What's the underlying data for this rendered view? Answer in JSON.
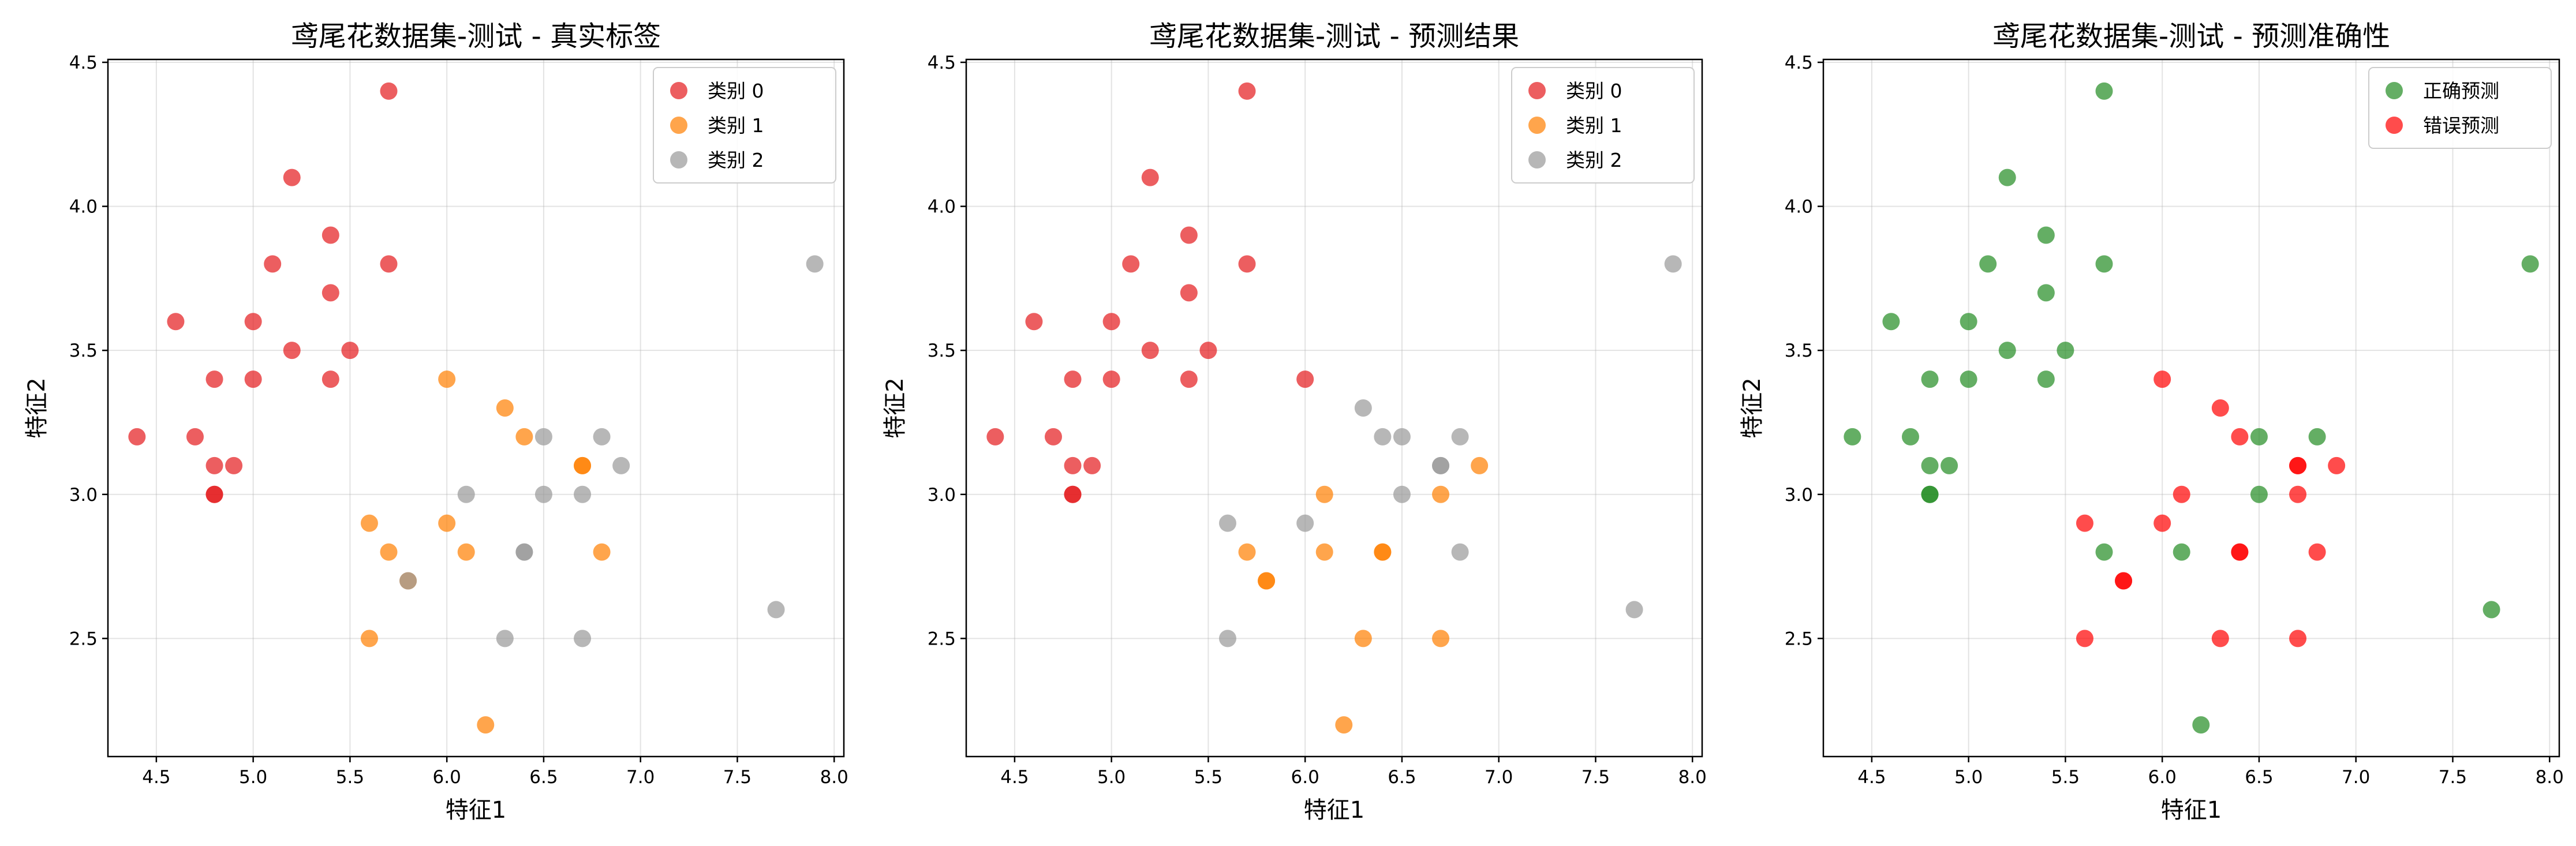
{
  "chart_data": [
    {
      "type": "scatter",
      "title": "鸢尾花数据集-测试 - 真实标签",
      "xlabel": "特征1",
      "ylabel": "特征2",
      "xlim": [
        4.25,
        8.05
      ],
      "ylim": [
        2.09,
        4.51
      ],
      "xticks": [
        "4.5",
        "5.0",
        "5.5",
        "6.0",
        "6.5",
        "7.0",
        "7.5",
        "8.0"
      ],
      "yticks": [
        "2.5",
        "3.0",
        "3.5",
        "4.0",
        "4.5"
      ],
      "grid": true,
      "legend_position": "top-right",
      "series": [
        {
          "name": "类别 0",
          "color": "#e41a1c",
          "points": [
            [
              5.7,
              4.4
            ],
            [
              5.2,
              4.1
            ],
            [
              5.4,
              3.9
            ],
            [
              5.1,
              3.8
            ],
            [
              5.7,
              3.8
            ],
            [
              5.4,
              3.7
            ],
            [
              4.6,
              3.6
            ],
            [
              5.0,
              3.6
            ],
            [
              5.2,
              3.5
            ],
            [
              5.5,
              3.5
            ],
            [
              4.8,
              3.4
            ],
            [
              5.0,
              3.4
            ],
            [
              5.4,
              3.4
            ],
            [
              4.4,
              3.2
            ],
            [
              4.7,
              3.2
            ],
            [
              4.8,
              3.1
            ],
            [
              4.9,
              3.1
            ],
            [
              4.8,
              3.0
            ],
            [
              4.8,
              3.0
            ]
          ]
        },
        {
          "name": "类别 1",
          "color": "#ff7f00",
          "points": [
            [
              6.0,
              3.4
            ],
            [
              6.3,
              3.3
            ],
            [
              6.4,
              3.2
            ],
            [
              6.7,
              3.1
            ],
            [
              6.7,
              3.1
            ],
            [
              5.6,
              2.9
            ],
            [
              6.0,
              2.9
            ],
            [
              5.7,
              2.8
            ],
            [
              6.1,
              2.8
            ],
            [
              6.8,
              2.8
            ],
            [
              5.8,
              2.7
            ],
            [
              5.6,
              2.5
            ],
            [
              6.2,
              2.2
            ]
          ]
        },
        {
          "name": "类别 2",
          "color": "#999999",
          "points": [
            [
              7.9,
              3.8
            ],
            [
              6.5,
              3.2
            ],
            [
              6.8,
              3.2
            ],
            [
              6.9,
              3.1
            ],
            [
              6.1,
              3.0
            ],
            [
              6.5,
              3.0
            ],
            [
              6.7,
              3.0
            ],
            [
              6.4,
              2.8
            ],
            [
              6.4,
              2.8
            ],
            [
              5.8,
              2.7
            ],
            [
              7.7,
              2.6
            ],
            [
              6.3,
              2.5
            ],
            [
              6.7,
              2.5
            ]
          ]
        }
      ]
    },
    {
      "type": "scatter",
      "title": "鸢尾花数据集-测试 - 预测结果",
      "xlabel": "特征1",
      "ylabel": "特征2",
      "xlim": [
        4.25,
        8.05
      ],
      "ylim": [
        2.09,
        4.51
      ],
      "xticks": [
        "4.5",
        "5.0",
        "5.5",
        "6.0",
        "6.5",
        "7.0",
        "7.5",
        "8.0"
      ],
      "yticks": [
        "2.5",
        "3.0",
        "3.5",
        "4.0",
        "4.5"
      ],
      "grid": true,
      "legend_position": "top-right",
      "series": [
        {
          "name": "类别 0",
          "color": "#e41a1c",
          "points": [
            [
              5.7,
              4.4
            ],
            [
              5.2,
              4.1
            ],
            [
              5.4,
              3.9
            ],
            [
              5.1,
              3.8
            ],
            [
              5.7,
              3.8
            ],
            [
              5.4,
              3.7
            ],
            [
              4.6,
              3.6
            ],
            [
              5.0,
              3.6
            ],
            [
              5.2,
              3.5
            ],
            [
              5.5,
              3.5
            ],
            [
              4.8,
              3.4
            ],
            [
              5.0,
              3.4
            ],
            [
              5.4,
              3.4
            ],
            [
              6.0,
              3.4
            ],
            [
              4.4,
              3.2
            ],
            [
              4.7,
              3.2
            ],
            [
              4.8,
              3.1
            ],
            [
              4.9,
              3.1
            ],
            [
              4.8,
              3.0
            ],
            [
              4.8,
              3.0
            ]
          ]
        },
        {
          "name": "类别 1",
          "color": "#ff7f00",
          "points": [
            [
              6.9,
              3.1
            ],
            [
              6.1,
              3.0
            ],
            [
              6.7,
              3.0
            ],
            [
              5.7,
              2.8
            ],
            [
              6.1,
              2.8
            ],
            [
              6.4,
              2.8
            ],
            [
              6.4,
              2.8
            ],
            [
              5.8,
              2.7
            ],
            [
              5.8,
              2.7
            ],
            [
              6.3,
              2.5
            ],
            [
              6.7,
              2.5
            ],
            [
              6.2,
              2.2
            ]
          ]
        },
        {
          "name": "类别 2",
          "color": "#999999",
          "points": [
            [
              7.9,
              3.8
            ],
            [
              6.3,
              3.3
            ],
            [
              6.4,
              3.2
            ],
            [
              6.5,
              3.2
            ],
            [
              6.8,
              3.2
            ],
            [
              6.7,
              3.1
            ],
            [
              6.7,
              3.1
            ],
            [
              6.5,
              3.0
            ],
            [
              5.6,
              2.9
            ],
            [
              6.0,
              2.9
            ],
            [
              6.8,
              2.8
            ],
            [
              7.7,
              2.6
            ],
            [
              5.6,
              2.5
            ]
          ]
        }
      ]
    },
    {
      "type": "scatter",
      "title": "鸢尾花数据集-测试 - 预测准确性",
      "xlabel": "特征1",
      "ylabel": "特征2",
      "xlim": [
        4.25,
        8.05
      ],
      "ylim": [
        2.09,
        4.51
      ],
      "xticks": [
        "4.5",
        "5.0",
        "5.5",
        "6.0",
        "6.5",
        "7.0",
        "7.5",
        "8.0"
      ],
      "yticks": [
        "2.5",
        "3.0",
        "3.5",
        "4.0",
        "4.5"
      ],
      "grid": true,
      "legend_position": "top-right",
      "series": [
        {
          "name": "正确预测",
          "color": "#228b22",
          "points": [
            [
              5.7,
              4.4
            ],
            [
              5.2,
              4.1
            ],
            [
              5.4,
              3.9
            ],
            [
              5.1,
              3.8
            ],
            [
              5.7,
              3.8
            ],
            [
              7.9,
              3.8
            ],
            [
              5.4,
              3.7
            ],
            [
              4.6,
              3.6
            ],
            [
              5.0,
              3.6
            ],
            [
              5.2,
              3.5
            ],
            [
              5.5,
              3.5
            ],
            [
              4.8,
              3.4
            ],
            [
              5.0,
              3.4
            ],
            [
              5.4,
              3.4
            ],
            [
              4.4,
              3.2
            ],
            [
              4.7,
              3.2
            ],
            [
              6.5,
              3.2
            ],
            [
              6.8,
              3.2
            ],
            [
              4.8,
              3.1
            ],
            [
              4.9,
              3.1
            ],
            [
              4.8,
              3.0
            ],
            [
              4.8,
              3.0
            ],
            [
              6.5,
              3.0
            ],
            [
              5.7,
              2.8
            ],
            [
              6.1,
              2.8
            ],
            [
              7.7,
              2.6
            ],
            [
              6.2,
              2.2
            ]
          ]
        },
        {
          "name": "错误预测",
          "color": "#ff0000",
          "points": [
            [
              6.0,
              3.4
            ],
            [
              6.3,
              3.3
            ],
            [
              6.4,
              3.2
            ],
            [
              6.7,
              3.1
            ],
            [
              6.7,
              3.1
            ],
            [
              6.9,
              3.1
            ],
            [
              6.1,
              3.0
            ],
            [
              6.7,
              3.0
            ],
            [
              5.6,
              2.9
            ],
            [
              6.0,
              2.9
            ],
            [
              6.4,
              2.8
            ],
            [
              6.4,
              2.8
            ],
            [
              6.8,
              2.8
            ],
            [
              5.8,
              2.7
            ],
            [
              5.8,
              2.7
            ],
            [
              5.6,
              2.5
            ],
            [
              6.3,
              2.5
            ],
            [
              6.7,
              2.5
            ]
          ]
        }
      ]
    }
  ]
}
